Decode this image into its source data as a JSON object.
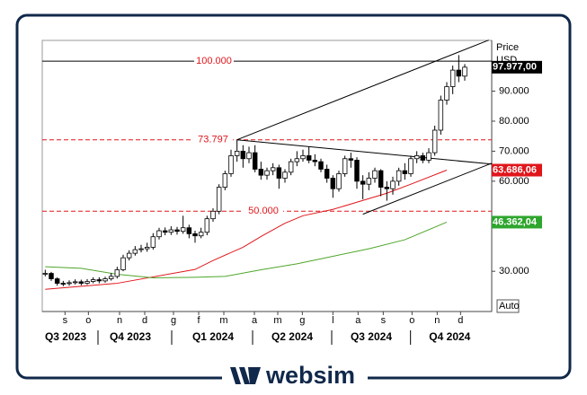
{
  "chart_data": {
    "type": "candlestick",
    "axis_title": "Price",
    "unit": "USD",
    "scale_mode": "Auto",
    "xlim": [
      -0.5,
      74.5
    ],
    "ylim": [
      16600,
      106900
    ],
    "yticks": [
      {
        "value": 30000,
        "label": "30.000"
      },
      {
        "value": 60000,
        "label": "60.000"
      },
      {
        "value": 70000,
        "label": "70.000"
      },
      {
        "value": 80000,
        "label": "80.000"
      },
      {
        "value": 90000,
        "label": "90.000"
      }
    ],
    "xticks": [
      {
        "value": 3.3,
        "label": "s"
      },
      {
        "value": 7.2,
        "label": "o"
      },
      {
        "value": 12.4,
        "label": "n"
      },
      {
        "value": 16.6,
        "label": "d"
      },
      {
        "value": 21.4,
        "label": "g"
      },
      {
        "value": 25.6,
        "label": "f"
      },
      {
        "value": 29.8,
        "label": "m"
      },
      {
        "value": 34.9,
        "label": "a"
      },
      {
        "value": 38.8,
        "label": "m"
      },
      {
        "value": 42.9,
        "label": "g"
      },
      {
        "value": 48,
        "label": "l"
      },
      {
        "value": 52.2,
        "label": "a"
      },
      {
        "value": 56.4,
        "label": "s"
      },
      {
        "value": 61.2,
        "label": "o"
      },
      {
        "value": 65.4,
        "label": "n"
      },
      {
        "value": 69.3,
        "label": "d"
      }
    ],
    "quarters": [
      {
        "value": 3.4,
        "label": "Q3 2023"
      },
      {
        "value": 14.2,
        "label": "Q4 2023"
      },
      {
        "value": 28,
        "label": "Q1 2024"
      },
      {
        "value": 41.2,
        "label": "Q2 2024"
      },
      {
        "value": 54.4,
        "label": "Q3 2024"
      },
      {
        "value": 67.5,
        "label": "Q4 2024"
      }
    ],
    "x": [
      0,
      1,
      2,
      3,
      4,
      5,
      6,
      7,
      8,
      9,
      10,
      11,
      12,
      13,
      14,
      15,
      16,
      17,
      18,
      19,
      20,
      21,
      22,
      23,
      24,
      25,
      26,
      27,
      28,
      29,
      30,
      31,
      32,
      33,
      34,
      35,
      36,
      37,
      38,
      39,
      40,
      41,
      42,
      43,
      44,
      45,
      46,
      47,
      48,
      49,
      50,
      51,
      52,
      53,
      54,
      55,
      56,
      57,
      58,
      59,
      60,
      61,
      62,
      63,
      64,
      65,
      66,
      67,
      68,
      69,
      70
    ],
    "open": [
      29000,
      29300,
      27500,
      26000,
      25900,
      26200,
      26500,
      26000,
      26600,
      27200,
      26800,
      27500,
      28300,
      30500,
      34500,
      36000,
      37200,
      37500,
      38000,
      41500,
      43500,
      43000,
      43800,
      43300,
      44500,
      42500,
      41800,
      43000,
      47500,
      50000,
      58000,
      62500,
      68500,
      70000,
      67500,
      69500,
      64000,
      62000,
      63500,
      64500,
      61000,
      63000,
      66500,
      67500,
      68500,
      67000,
      66500,
      64000,
      61000,
      57500,
      62500,
      67500,
      67000,
      60000,
      59000,
      61000,
      63500,
      58000,
      57500,
      60000,
      63500,
      62500,
      67500,
      68500,
      67000,
      69500,
      77000,
      87000,
      91500,
      97000,
      95000
    ],
    "high": [
      30500,
      29800,
      28000,
      26800,
      27000,
      27300,
      27200,
      27400,
      28000,
      28000,
      28200,
      29400,
      31500,
      35500,
      37000,
      38400,
      38800,
      39500,
      42700,
      44500,
      44600,
      45000,
      44800,
      48500,
      45500,
      43500,
      44500,
      48500,
      51000,
      59000,
      63500,
      70500,
      73800,
      72000,
      71500,
      72000,
      66500,
      64500,
      66000,
      65500,
      64000,
      67500,
      70000,
      70500,
      71500,
      69000,
      67500,
      65500,
      62000,
      63500,
      68500,
      69500,
      68000,
      62000,
      63000,
      64500,
      64000,
      60000,
      61500,
      64500,
      66000,
      68500,
      70000,
      69500,
      71000,
      78500,
      88500,
      93000,
      98500,
      102000,
      99000
    ],
    "low": [
      28300,
      26800,
      25200,
      25000,
      25200,
      25600,
      25300,
      25500,
      26000,
      26000,
      26200,
      26900,
      27600,
      30000,
      33600,
      35200,
      36300,
      36500,
      37200,
      40600,
      42000,
      42100,
      42200,
      42500,
      41000,
      39500,
      41000,
      42000,
      46500,
      49000,
      57000,
      61500,
      66500,
      64500,
      66000,
      63000,
      60500,
      60500,
      62000,
      57500,
      59500,
      62000,
      65000,
      66500,
      66000,
      65000,
      63000,
      59500,
      54500,
      56500,
      61500,
      64500,
      57500,
      54000,
      57000,
      59500,
      55000,
      53500,
      55500,
      58500,
      60500,
      61500,
      66000,
      66000,
      66000,
      68500,
      75500,
      85500,
      89000,
      93000,
      93500
    ],
    "close": [
      29300,
      27500,
      26000,
      25900,
      26200,
      26500,
      26000,
      26600,
      27200,
      26800,
      27500,
      28300,
      30500,
      34500,
      36000,
      37200,
      37500,
      38000,
      41500,
      43500,
      43000,
      43800,
      43300,
      44500,
      42500,
      41800,
      43000,
      47500,
      50000,
      58000,
      62500,
      68500,
      70000,
      67500,
      69500,
      64000,
      62000,
      63500,
      64500,
      61000,
      63000,
      66500,
      67500,
      68500,
      67000,
      66500,
      64000,
      61000,
      57500,
      62500,
      67500,
      67000,
      60000,
      59000,
      61000,
      63500,
      58000,
      57500,
      60000,
      63500,
      62500,
      67500,
      68500,
      67000,
      69500,
      77000,
      87000,
      91500,
      97000,
      95000,
      97977
    ],
    "overlays": [
      {
        "color": "#e0161b",
        "x": [
          0,
          12,
          25,
          28,
          33,
          36,
          40,
          43,
          48,
          52,
          57,
          61,
          67
        ],
        "values": [
          24000,
          26000,
          30600,
          33600,
          38000,
          41600,
          46000,
          48500,
          50600,
          53000,
          56000,
          59000,
          63686.06
        ]
      },
      {
        "color": "#4ea62a",
        "x": [
          0,
          6,
          12,
          18,
          25,
          30,
          36,
          42,
          48,
          54,
          60,
          67
        ],
        "values": [
          31500,
          31000,
          29000,
          27800,
          28000,
          28300,
          30500,
          32500,
          35000,
          37500,
          40500,
          46362.04
        ]
      }
    ],
    "trendlines": [
      {
        "x": [
          32,
          74
        ],
        "values": [
          73797,
          107000
        ]
      },
      {
        "x": [
          32,
          74.5
        ],
        "values": [
          73797,
          65700
        ]
      },
      {
        "x": [
          53,
          74.5
        ],
        "values": [
          49000,
          66000
        ]
      }
    ],
    "levels": [
      {
        "value": 100000,
        "label": "100.000",
        "color": "#000000",
        "dashed": false
      },
      {
        "value": 73797,
        "label": "73.797",
        "color": "#e0161b",
        "dashed": true
      },
      {
        "value": 50000,
        "label": "50.000",
        "color": "#e0161b",
        "dashed": true
      }
    ],
    "price_tags": [
      {
        "value": 97977,
        "label": "97.977,00",
        "color": "#000000"
      },
      {
        "value": 63686.06,
        "label": "63.686,06",
        "color": "#e0161b"
      },
      {
        "value": 46362.04,
        "label": "46.362,04",
        "color": "#2ea62e"
      }
    ]
  },
  "watermark": "websim"
}
